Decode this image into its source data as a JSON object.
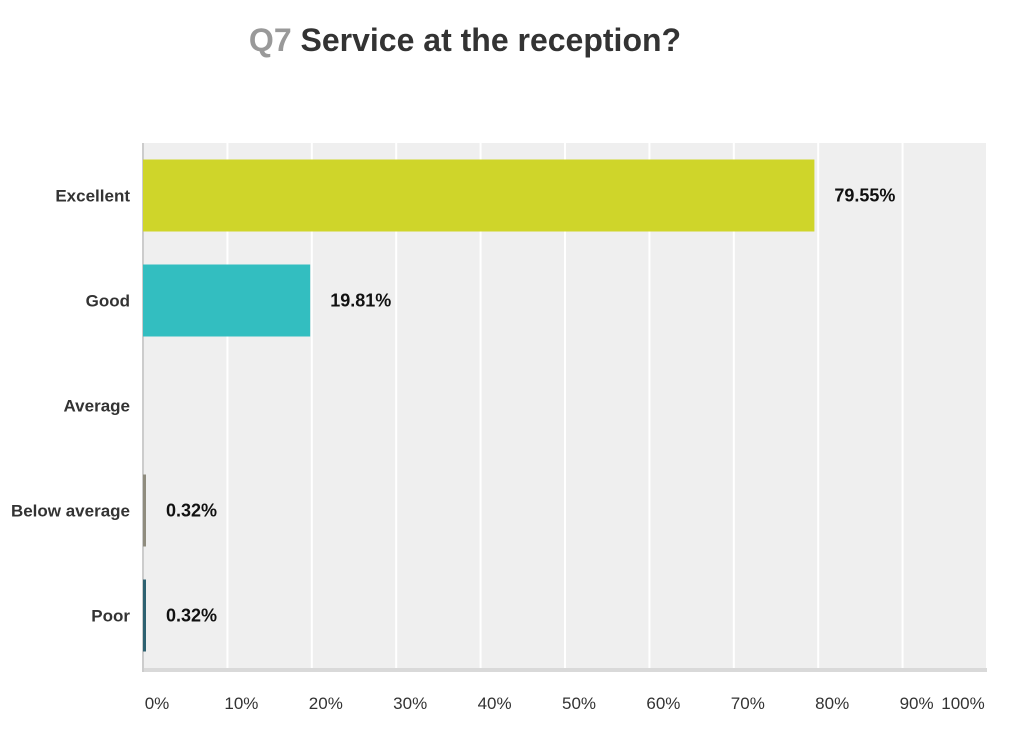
{
  "chart_data": {
    "type": "bar",
    "orientation": "horizontal",
    "title_prefix": "Q7",
    "title": "Service at the reception?",
    "categories": [
      "Excellent",
      "Good",
      "Average",
      "Below average",
      "Poor"
    ],
    "values": [
      79.55,
      19.81,
      0,
      0.32,
      0.32
    ],
    "value_labels": [
      "79.55%",
      "19.81%",
      "",
      "0.32%",
      "0.32%"
    ],
    "colors": [
      "#cfd52a",
      "#33bec0",
      "#a0a0a0",
      "#8f8c7e",
      "#2d6170"
    ],
    "xlim": [
      0,
      100
    ],
    "xticks": [
      "0%",
      "10%",
      "20%",
      "30%",
      "40%",
      "50%",
      "60%",
      "70%",
      "80%",
      "90%",
      "100%"
    ],
    "xlabel": "",
    "ylabel": "",
    "grid": true
  }
}
